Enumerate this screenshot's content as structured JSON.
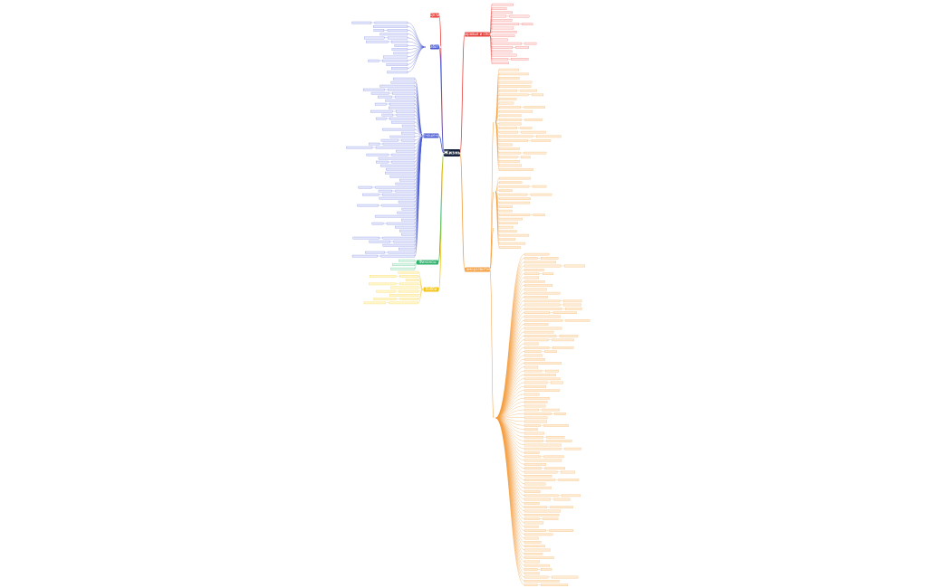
{
  "root": {
    "label": "Жизнь"
  },
  "branches": [
    {
      "label": "Здоровье и спорт"
    },
    {
      "label": "Саморазвитие"
    },
    {
      "label": "Цели"
    },
    {
      "label": "Работа"
    },
    {
      "label": "Отношения"
    },
    {
      "label": "Финансы"
    },
    {
      "label": "Хобби"
    }
  ]
}
